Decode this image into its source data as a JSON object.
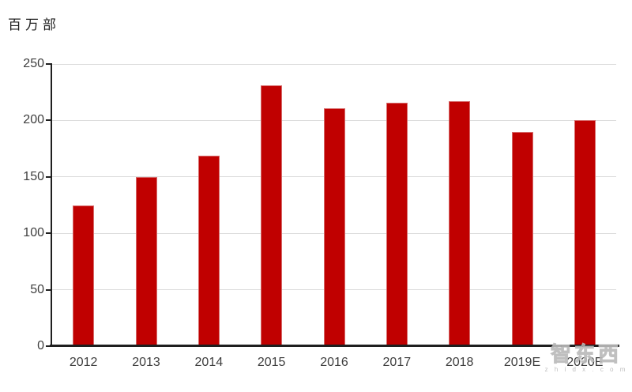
{
  "chart_data": {
    "type": "bar",
    "title": "",
    "xlabel": "",
    "ylabel": "百万部",
    "categories": [
      "2012",
      "2013",
      "2014",
      "2015",
      "2016",
      "2017",
      "2018",
      "2019E",
      "2020E"
    ],
    "values": [
      125,
      150,
      169,
      231,
      211,
      216,
      217,
      190,
      200
    ],
    "ylim": [
      0,
      250
    ],
    "yticks": [
      0,
      50,
      100,
      150,
      200,
      250
    ],
    "grid": true,
    "legend": "none",
    "colors": {
      "bar": "#c00000",
      "bar_border": "#d66a6a",
      "gridline": "#dcdcdc",
      "axis": "#1f1f1f",
      "tick_text": "#3d3d3d"
    }
  },
  "watermark": {
    "text": "智东西",
    "subtext": "z h i d x . c o m"
  }
}
